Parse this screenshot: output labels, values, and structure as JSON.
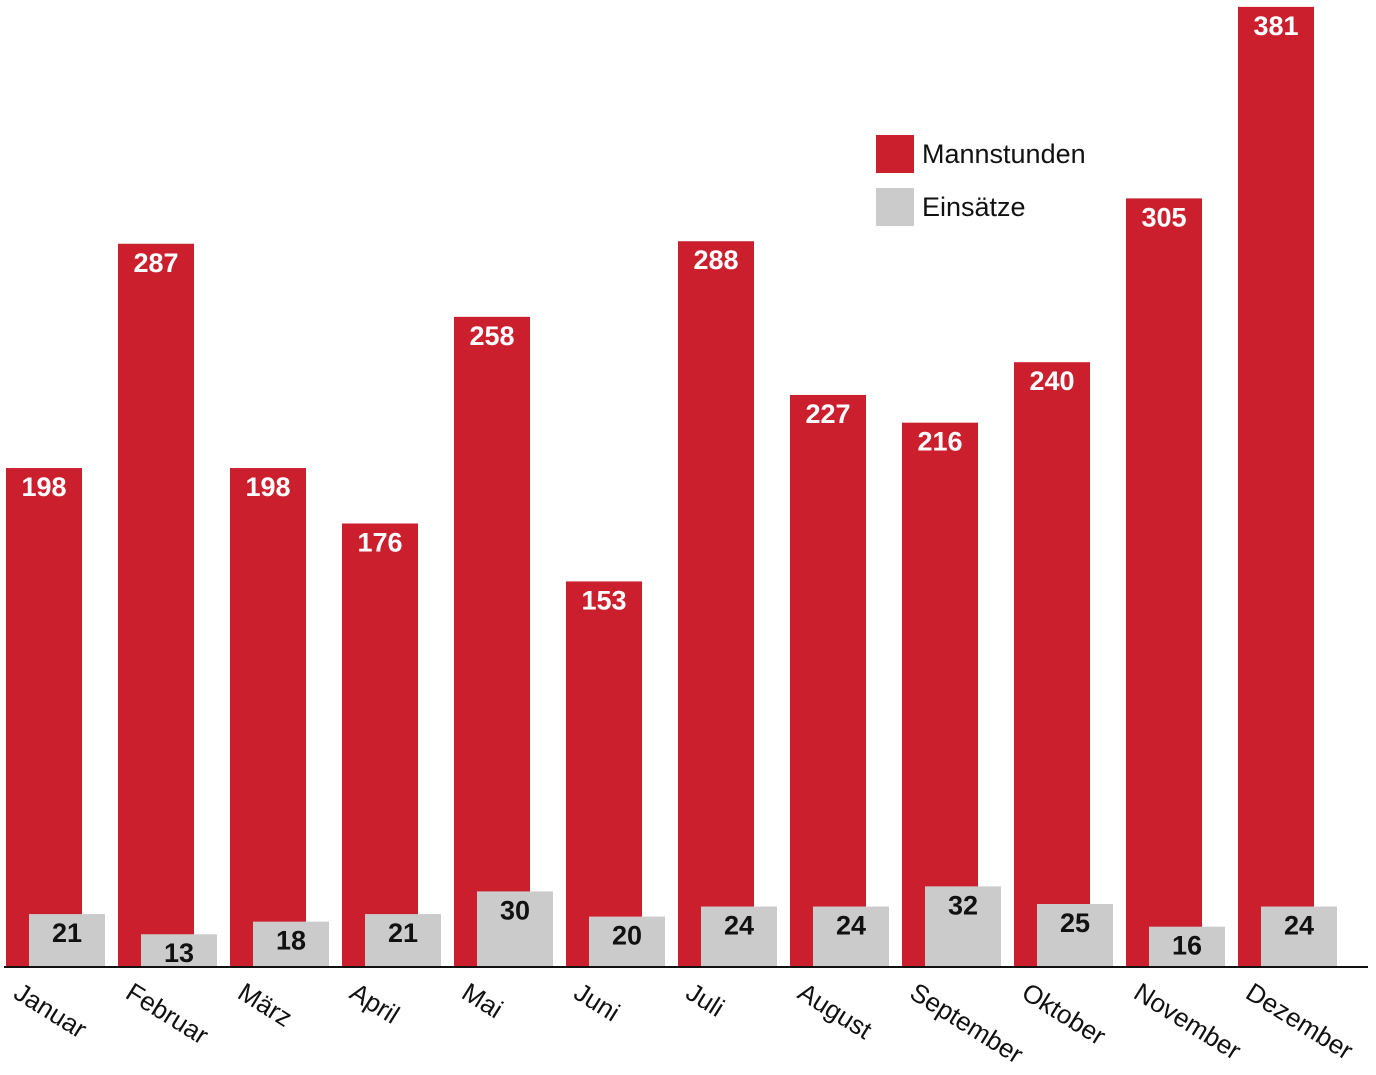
{
  "colors": {
    "mannstunden": "#cc1f2e",
    "einsaetze": "#cbcbcb",
    "mannstunden_label": "#ffffff",
    "einsaetze_label": "#111111",
    "axis": "#111111"
  },
  "legend": {
    "mannstunden": "Mannstunden",
    "einsaetze": "Einsätze"
  },
  "chart_data": {
    "type": "bar",
    "title": "",
    "xlabel": "",
    "ylabel": "",
    "legend_position": "top-right",
    "grid": false,
    "categories": [
      "Januar",
      "Februar",
      "März",
      "April",
      "Mai",
      "Juni",
      "Juli",
      "August",
      "September",
      "Oktober",
      "November",
      "Dezember"
    ],
    "series": [
      {
        "name": "Mannstunden",
        "values": [
          198,
          287,
          198,
          176,
          258,
          153,
          288,
          227,
          216,
          240,
          305,
          381
        ]
      },
      {
        "name": "Einsätze",
        "values": [
          21,
          13,
          18,
          21,
          30,
          20,
          24,
          24,
          32,
          25,
          16,
          24
        ]
      }
    ]
  }
}
